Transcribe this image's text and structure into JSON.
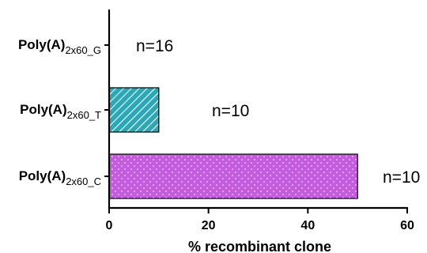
{
  "chart_data": {
    "type": "bar",
    "orientation": "horizontal",
    "categories": [
      {
        "main": "Poly(A)",
        "sub": "2x60_G"
      },
      {
        "main": "Poly(A)",
        "sub": "2x60_T"
      },
      {
        "main": "Poly(A)",
        "sub": "2x60_C"
      }
    ],
    "values": [
      0,
      10,
      50
    ],
    "annotations": [
      "n=16",
      "n=10",
      "n=10"
    ],
    "xlabel": "% recombinant clone",
    "xlim": [
      0,
      60
    ],
    "xticks": [
      "0",
      "20",
      "40",
      "60"
    ],
    "grid": false,
    "bar_styles": [
      {
        "fill": "#ffffff",
        "pattern": "none"
      },
      {
        "fill": "#2aa8b8",
        "pattern": "diagonal-stripes"
      },
      {
        "fill": "#c45ce0",
        "pattern": "dots"
      }
    ]
  }
}
